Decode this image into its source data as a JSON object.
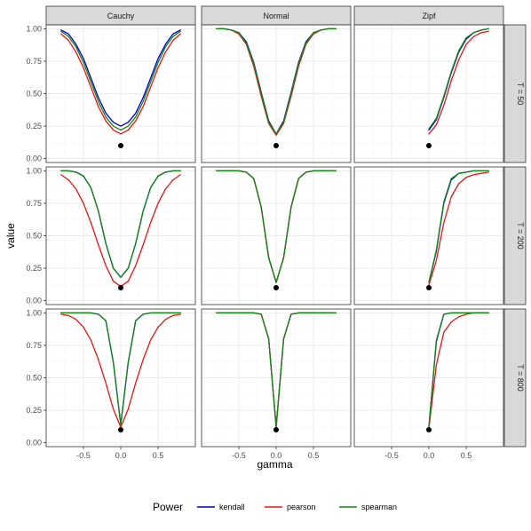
{
  "chart_data": {
    "type": "line",
    "facet_cols": [
      "Cauchy",
      "Normal",
      "Zipf"
    ],
    "facet_rows": [
      "T = 50",
      "T = 200",
      "T = 800"
    ],
    "xlabel": "gamma",
    "ylabel": "value",
    "x_ticks": [
      "-0.5",
      "0.0",
      "0.5"
    ],
    "y_ticks": [
      "0.00",
      "0.25",
      "0.50",
      "0.75",
      "1.00"
    ],
    "xlim": [
      -1.0,
      1.0
    ],
    "ylim": [
      -0.03,
      1.03
    ],
    "legend": {
      "title": "Power",
      "position": "bottom",
      "entries": [
        "kendall",
        "pearson",
        "spearman"
      ]
    },
    "colors": {
      "kendall": "#0000cc",
      "pearson": "#ee1111",
      "spearman": "#118811"
    },
    "reference_point": {
      "x": 0.0,
      "y": 0.1
    },
    "x_values": [
      -0.8,
      -0.7,
      -0.6,
      -0.5,
      -0.4,
      -0.3,
      -0.2,
      -0.1,
      0.0,
      0.1,
      0.2,
      0.3,
      0.4,
      0.5,
      0.6,
      0.7,
      0.8
    ],
    "zipf_x_values": [
      0.0,
      0.1,
      0.2,
      0.3,
      0.4,
      0.5,
      0.6,
      0.7,
      0.8
    ],
    "panels": [
      {
        "row": "T = 50",
        "col": "Cauchy",
        "series": [
          {
            "name": "kendall",
            "values": [
              0.99,
              0.96,
              0.88,
              0.77,
              0.62,
              0.47,
              0.35,
              0.28,
              0.25,
              0.28,
              0.35,
              0.47,
              0.62,
              0.77,
              0.88,
              0.96,
              0.99
            ]
          },
          {
            "name": "pearson",
            "values": [
              0.96,
              0.91,
              0.82,
              0.7,
              0.55,
              0.4,
              0.29,
              0.22,
              0.19,
              0.22,
              0.29,
              0.4,
              0.55,
              0.7,
              0.82,
              0.91,
              0.96
            ]
          },
          {
            "name": "spearman",
            "values": [
              0.98,
              0.94,
              0.86,
              0.74,
              0.59,
              0.44,
              0.32,
              0.25,
              0.22,
              0.25,
              0.32,
              0.44,
              0.59,
              0.74,
              0.86,
              0.94,
              0.98
            ]
          }
        ]
      },
      {
        "row": "T = 50",
        "col": "Normal",
        "series": [
          {
            "name": "kendall",
            "values": [
              1.0,
              1.0,
              0.99,
              0.97,
              0.9,
              0.74,
              0.51,
              0.29,
              0.19,
              0.29,
              0.51,
              0.74,
              0.9,
              0.97,
              0.99,
              1.0,
              1.0
            ]
          },
          {
            "name": "pearson",
            "values": [
              1.0,
              1.0,
              0.99,
              0.96,
              0.88,
              0.71,
              0.48,
              0.27,
              0.18,
              0.27,
              0.48,
              0.71,
              0.88,
              0.96,
              0.99,
              1.0,
              1.0
            ]
          },
          {
            "name": "spearman",
            "values": [
              1.0,
              1.0,
              0.99,
              0.97,
              0.89,
              0.73,
              0.5,
              0.28,
              0.19,
              0.28,
              0.5,
              0.73,
              0.89,
              0.97,
              0.99,
              1.0,
              1.0
            ]
          }
        ]
      },
      {
        "row": "T = 50",
        "col": "Zipf",
        "series": [
          {
            "name": "kendall",
            "values": [
              0.22,
              0.3,
              0.47,
              0.66,
              0.82,
              0.92,
              0.97,
              0.99,
              1.0
            ]
          },
          {
            "name": "pearson",
            "values": [
              0.19,
              0.26,
              0.41,
              0.6,
              0.76,
              0.88,
              0.94,
              0.97,
              0.98
            ]
          },
          {
            "name": "spearman",
            "values": [
              0.23,
              0.31,
              0.48,
              0.67,
              0.83,
              0.93,
              0.97,
              0.99,
              1.0
            ]
          }
        ]
      },
      {
        "row": "T = 200",
        "col": "Cauchy",
        "series": [
          {
            "name": "kendall",
            "values": [
              1.0,
              1.0,
              0.99,
              0.96,
              0.87,
              0.69,
              0.44,
              0.25,
              0.18,
              0.25,
              0.44,
              0.69,
              0.87,
              0.96,
              0.99,
              1.0,
              1.0
            ]
          },
          {
            "name": "pearson",
            "values": [
              0.97,
              0.93,
              0.86,
              0.75,
              0.6,
              0.43,
              0.27,
              0.15,
              0.11,
              0.15,
              0.27,
              0.43,
              0.6,
              0.75,
              0.86,
              0.93,
              0.97
            ]
          },
          {
            "name": "spearman",
            "values": [
              1.0,
              1.0,
              0.99,
              0.96,
              0.87,
              0.69,
              0.44,
              0.25,
              0.18,
              0.25,
              0.44,
              0.69,
              0.87,
              0.96,
              0.99,
              1.0,
              1.0
            ]
          }
        ]
      },
      {
        "row": "T = 200",
        "col": "Normal",
        "series": [
          {
            "name": "kendall",
            "values": [
              1.0,
              1.0,
              1.0,
              1.0,
              0.99,
              0.94,
              0.72,
              0.33,
              0.14,
              0.33,
              0.72,
              0.94,
              0.99,
              1.0,
              1.0,
              1.0,
              1.0
            ]
          },
          {
            "name": "pearson",
            "values": [
              1.0,
              1.0,
              1.0,
              1.0,
              0.99,
              0.94,
              0.72,
              0.33,
              0.14,
              0.33,
              0.72,
              0.94,
              0.99,
              1.0,
              1.0,
              1.0,
              1.0
            ]
          },
          {
            "name": "spearman",
            "values": [
              1.0,
              1.0,
              1.0,
              1.0,
              0.99,
              0.94,
              0.72,
              0.33,
              0.14,
              0.33,
              0.72,
              0.94,
              0.99,
              1.0,
              1.0,
              1.0,
              1.0
            ]
          }
        ]
      },
      {
        "row": "T = 200",
        "col": "Zipf",
        "series": [
          {
            "name": "kendall",
            "values": [
              0.14,
              0.38,
              0.75,
              0.93,
              0.98,
              0.99,
              1.0,
              1.0,
              1.0
            ]
          },
          {
            "name": "pearson",
            "values": [
              0.12,
              0.31,
              0.6,
              0.8,
              0.9,
              0.95,
              0.97,
              0.98,
              0.99
            ]
          },
          {
            "name": "spearman",
            "values": [
              0.14,
              0.39,
              0.76,
              0.94,
              0.98,
              0.99,
              1.0,
              1.0,
              1.0
            ]
          }
        ]
      },
      {
        "row": "T = 800",
        "col": "Cauchy",
        "series": [
          {
            "name": "kendall",
            "values": [
              1.0,
              1.0,
              1.0,
              1.0,
              1.0,
              0.99,
              0.94,
              0.62,
              0.14,
              0.62,
              0.94,
              0.99,
              1.0,
              1.0,
              1.0,
              1.0,
              1.0
            ]
          },
          {
            "name": "pearson",
            "values": [
              0.99,
              0.98,
              0.95,
              0.89,
              0.79,
              0.64,
              0.46,
              0.26,
              0.12,
              0.26,
              0.46,
              0.64,
              0.79,
              0.89,
              0.95,
              0.98,
              0.99
            ]
          },
          {
            "name": "spearman",
            "values": [
              1.0,
              1.0,
              1.0,
              1.0,
              1.0,
              0.99,
              0.94,
              0.62,
              0.14,
              0.62,
              0.94,
              0.99,
              1.0,
              1.0,
              1.0,
              1.0,
              1.0
            ]
          }
        ]
      },
      {
        "row": "T = 800",
        "col": "Normal",
        "series": [
          {
            "name": "kendall",
            "values": [
              1.0,
              1.0,
              1.0,
              1.0,
              1.0,
              1.0,
              0.99,
              0.8,
              0.12,
              0.8,
              0.99,
              1.0,
              1.0,
              1.0,
              1.0,
              1.0,
              1.0
            ]
          },
          {
            "name": "pearson",
            "values": [
              1.0,
              1.0,
              1.0,
              1.0,
              1.0,
              1.0,
              0.99,
              0.8,
              0.12,
              0.8,
              0.99,
              1.0,
              1.0,
              1.0,
              1.0,
              1.0,
              1.0
            ]
          },
          {
            "name": "spearman",
            "values": [
              1.0,
              1.0,
              1.0,
              1.0,
              1.0,
              1.0,
              0.99,
              0.8,
              0.12,
              0.8,
              0.99,
              1.0,
              1.0,
              1.0,
              1.0,
              1.0,
              1.0
            ]
          }
        ]
      },
      {
        "row": "T = 800",
        "col": "Zipf",
        "series": [
          {
            "name": "kendall",
            "values": [
              0.12,
              0.78,
              0.99,
              1.0,
              1.0,
              1.0,
              1.0,
              1.0,
              1.0
            ]
          },
          {
            "name": "pearson",
            "values": [
              0.11,
              0.6,
              0.85,
              0.93,
              0.97,
              0.99,
              1.0,
              1.0,
              1.0
            ]
          },
          {
            "name": "spearman",
            "values": [
              0.12,
              0.79,
              0.99,
              1.0,
              1.0,
              1.0,
              1.0,
              1.0,
              1.0
            ]
          }
        ]
      }
    ]
  }
}
